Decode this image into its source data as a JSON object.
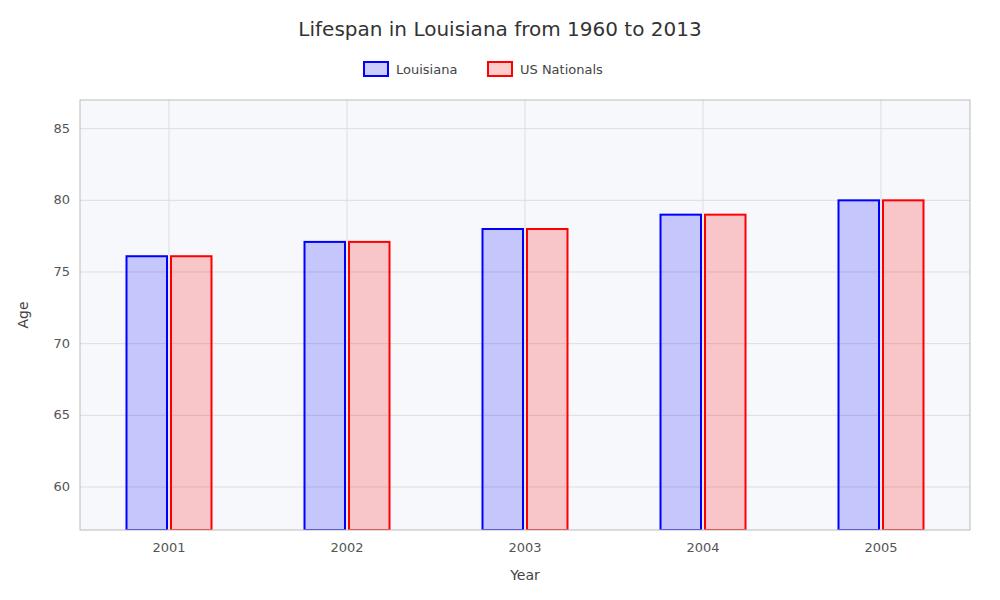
{
  "chart_data": {
    "type": "bar",
    "title": "Lifespan in Louisiana from 1960 to 2013",
    "x_label": "Year",
    "y_label": "Age",
    "categories": [
      "2001",
      "2002",
      "2003",
      "2004",
      "2005"
    ],
    "series": [
      {
        "name": "Louisiana",
        "color": "#0000ff",
        "values": [
          76.1,
          77.1,
          78.0,
          79.0,
          80.0
        ]
      },
      {
        "name": "US Nationals",
        "color": "#ff0000",
        "values": [
          76.1,
          77.1,
          78.0,
          79.0,
          80.0
        ]
      }
    ],
    "ylim": [
      57,
      87
    ],
    "yticks": [
      60,
      65,
      70,
      75,
      80,
      85
    ],
    "grid": true,
    "legend": "top"
  }
}
